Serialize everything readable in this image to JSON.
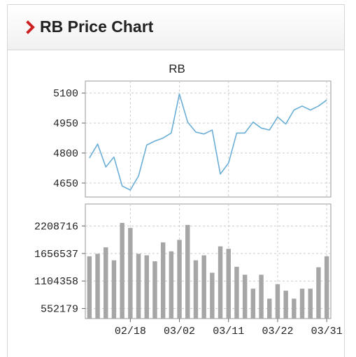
{
  "header": {
    "title": "RB Price Chart",
    "accent": "#cc2222"
  },
  "chart_data": [
    {
      "type": "line",
      "title": "RB",
      "color": "#6aaed6",
      "ylim": [
        4580,
        5160
      ],
      "yticks": [
        5100,
        4950,
        4800,
        4650
      ],
      "grid": true,
      "values": [
        4775,
        4845,
        4730,
        4780,
        4635,
        4615,
        4685,
        4840,
        4860,
        4875,
        4900,
        5095,
        4955,
        4905,
        4895,
        4915,
        4695,
        4750,
        4900,
        4900,
        4955,
        4925,
        4915,
        4980,
        4945,
        5015,
        5035,
        5015,
        5035,
        5065
      ]
    },
    {
      "type": "bar",
      "color": "#a6a6a6",
      "ylim": [
        350000,
        2650000
      ],
      "yticks": [
        2208716,
        1656537,
        1104358,
        552179
      ],
      "grid": true,
      "xticks": [
        "02/18",
        "03/02",
        "03/11",
        "03/22",
        "03/31"
      ],
      "xtick_index": [
        5,
        11,
        17,
        23,
        29
      ],
      "values": [
        1600000,
        1650000,
        1780000,
        1520000,
        2270000,
        2170000,
        1650000,
        1620000,
        1500000,
        1880000,
        1700000,
        1930000,
        2230000,
        1520000,
        1620000,
        1270000,
        1800000,
        1750000,
        1390000,
        1230000,
        950000,
        1230000,
        750000,
        1040000,
        910000,
        750000,
        950000,
        950000,
        1380000,
        1600000
      ]
    }
  ]
}
